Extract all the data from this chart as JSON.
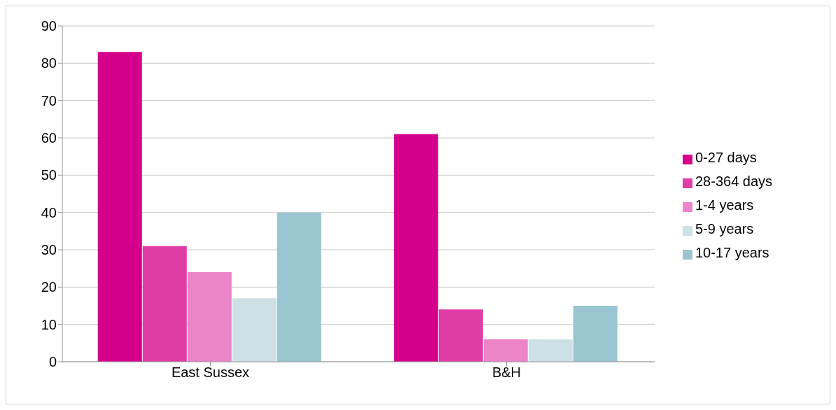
{
  "chart_data": {
    "type": "bar",
    "categories": [
      "East Sussex",
      "B&H"
    ],
    "series": [
      {
        "name": "0-27 days",
        "color": "#d4008c",
        "values": [
          83,
          61
        ]
      },
      {
        "name": "28-364 days",
        "color": "#e03ca6",
        "values": [
          31,
          14
        ]
      },
      {
        "name": "1-4 years",
        "color": "#ec84c8",
        "values": [
          24,
          6
        ]
      },
      {
        "name": "5-9 years",
        "color": "#cde0e6",
        "values": [
          17,
          6
        ]
      },
      {
        "name": "10-17 years",
        "color": "#9ac4d0",
        "values": [
          40,
          15
        ]
      }
    ],
    "ylim": [
      0,
      90
    ],
    "yticks": [
      0,
      10,
      20,
      30,
      40,
      50,
      60,
      70,
      80,
      90
    ],
    "grid": "y",
    "legend": "right"
  }
}
